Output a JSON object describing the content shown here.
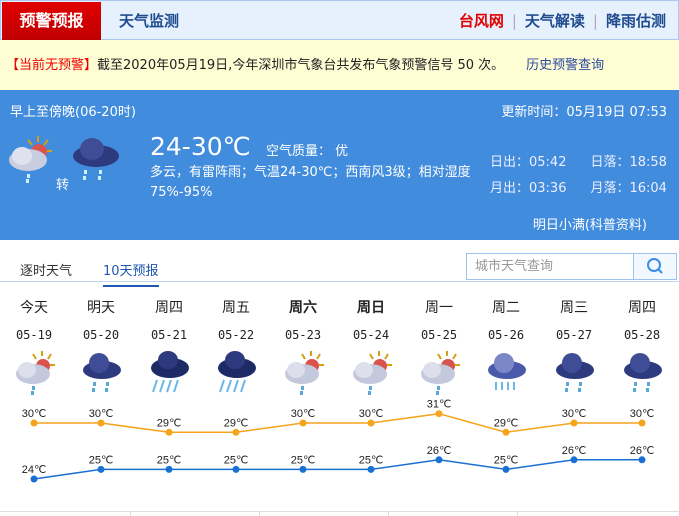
{
  "nav": {
    "active": "预警预报",
    "monitor": "天气监测",
    "links": [
      {
        "label": "台风网",
        "color": "#e00000"
      },
      {
        "label": "天气解读",
        "color": "#1f4c8f"
      },
      {
        "label": "降雨估测",
        "color": "#1f4c8f"
      }
    ]
  },
  "alert": {
    "status": "【当前无预警】",
    "text": "截至2020年05月19日,今年深圳市气象台共发布气象预警信号 50 次。",
    "link": "历史预警查询"
  },
  "today": {
    "period": "早上至傍晚(06-20时)",
    "updated": "更新时间：05月19日 07:53",
    "temp": "24-30℃",
    "air_quality": "空气质量： 优",
    "desc": "多云，有雷阵雨；气温24-30℃；西南风3级；相对湿度75%-95%",
    "transition": "转",
    "icons": [
      "partly-cloudy-rain-icon",
      "cloud-rain-icon"
    ],
    "sunrise": "日出：05:42",
    "sunset": "日落：18:58",
    "moonrise": "月出：03:36",
    "moonset": "月落：16:04",
    "tip": "明日小满(科普资料)"
  },
  "tabs": [
    {
      "label": "逐时天气",
      "active": false
    },
    {
      "label": "10天预报",
      "active": true
    }
  ],
  "search": {
    "placeholder": "城市天气查询"
  },
  "chart_data": {
    "type": "line",
    "categories": [
      "05-19",
      "05-20",
      "05-21",
      "05-22",
      "05-23",
      "05-24",
      "05-25",
      "05-26",
      "05-27",
      "05-28"
    ],
    "series": [
      {
        "values": [
          30,
          30,
          29,
          29,
          30,
          30,
          31,
          29,
          30,
          30
        ],
        "color": "#f5a41b"
      },
      {
        "values": [
          24,
          25,
          25,
          25,
          25,
          25,
          26,
          25,
          26,
          26
        ],
        "color": "#1a6fd2"
      }
    ],
    "unit": "℃"
  },
  "days": [
    {
      "name": "今天",
      "date": "05-19",
      "icon": "partly-cloudy-rain",
      "bold": false
    },
    {
      "name": "明天",
      "date": "05-20",
      "icon": "cloud-rain",
      "bold": false
    },
    {
      "name": "周四",
      "date": "05-21",
      "icon": "heavy-rain",
      "bold": false
    },
    {
      "name": "周五",
      "date": "05-22",
      "icon": "heavy-rain",
      "bold": false
    },
    {
      "name": "周六",
      "date": "05-23",
      "icon": "partly-cloudy-rain",
      "bold": true
    },
    {
      "name": "周日",
      "date": "05-24",
      "icon": "partly-cloudy-rain",
      "bold": true
    },
    {
      "name": "周一",
      "date": "05-25",
      "icon": "partly-cloudy-rain",
      "bold": false
    },
    {
      "name": "周二",
      "date": "05-26",
      "icon": "shower",
      "bold": false
    },
    {
      "name": "周三",
      "date": "05-27",
      "icon": "cloud-rain",
      "bold": false
    },
    {
      "name": "周四",
      "date": "05-28",
      "icon": "cloud-rain",
      "bold": false
    }
  ]
}
